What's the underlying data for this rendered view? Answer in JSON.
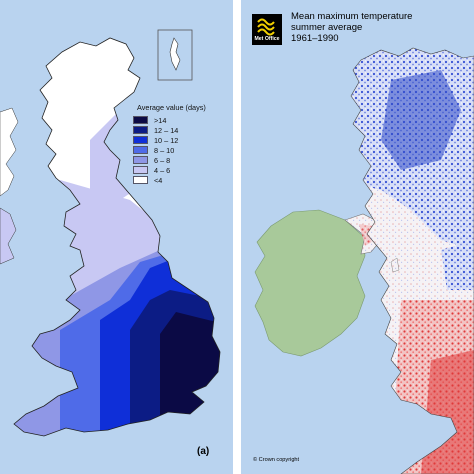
{
  "left_map": {
    "legend": {
      "title": "Average value (days)",
      "items": [
        {
          "label": ">14",
          "color": "#0b0a45"
        },
        {
          "label": "12 – 14",
          "color": "#0c1c85"
        },
        {
          "label": "10 – 12",
          "color": "#0f2fd8"
        },
        {
          "label": "8 – 10",
          "color": "#4f6be8"
        },
        {
          "label": "6 – 8",
          "color": "#8f97e6"
        },
        {
          "label": "4 – 6",
          "color": "#c8c8f3"
        },
        {
          "label": "<4",
          "color": "#ffffff"
        }
      ]
    },
    "panel_label": "(a)",
    "colors": {
      "sea": "#b9d3ef",
      "inset_border": "#555555"
    }
  },
  "right_map": {
    "logo_text": "Met Office",
    "title_lines": [
      "Mean maximum temperature",
      "summer average",
      "1961–1990"
    ],
    "copyright": "© Crown copyright",
    "colors": {
      "sea": "#b9d3ef",
      "ireland": "#a8c99a",
      "cool": "#2f4bc9",
      "warm": "#e03a3a",
      "neutral": "#f3f0f3"
    }
  }
}
